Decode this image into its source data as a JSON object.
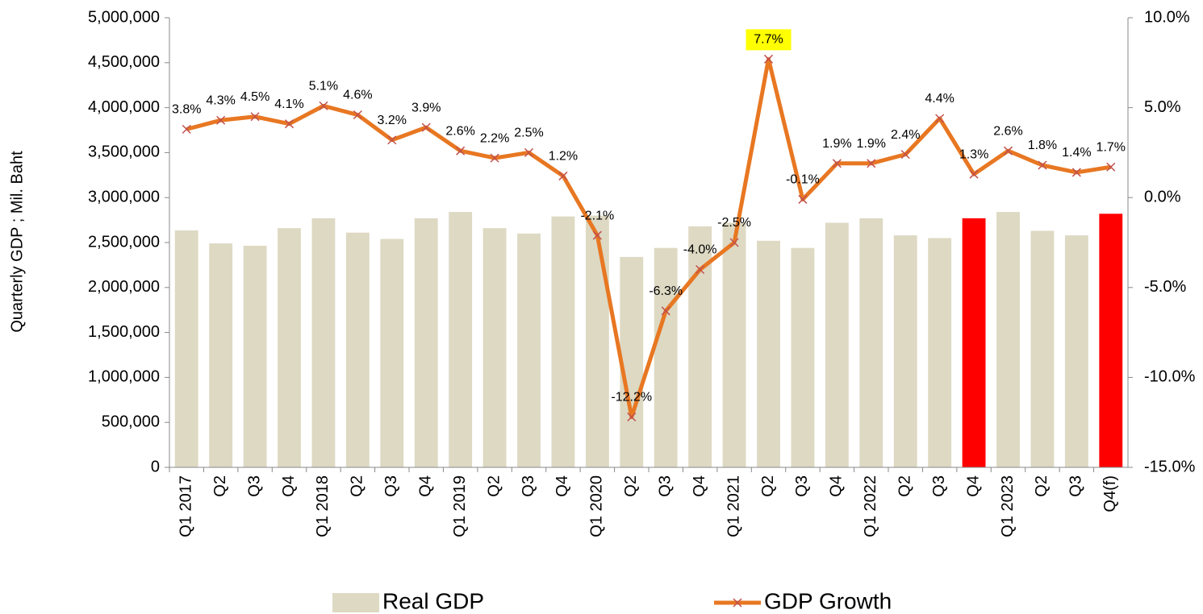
{
  "chart_data": {
    "type": "bar_line",
    "y_label": "Quarterly GDP ; Mil. Baht",
    "categories": [
      "Q1 2017",
      "Q2",
      "Q3",
      "Q4",
      "Q1 2018",
      "Q2",
      "Q3",
      "Q4",
      "Q1 2019",
      "Q2",
      "Q3",
      "Q4",
      "Q1 2020",
      "Q2",
      "Q3",
      "Q4",
      "Q1 2021",
      "Q2",
      "Q3",
      "Q4",
      "Q1 2022",
      "Q2",
      "Q3",
      "Q4",
      "Q1 2023",
      "Q2",
      "Q3",
      "Q4(f)"
    ],
    "series": [
      {
        "name": "Real GDP",
        "type": "bar",
        "color": "#ddd9c3",
        "point_colors": [
          "#ddd9c3",
          "#ddd9c3",
          "#ddd9c3",
          "#ddd9c3",
          "#ddd9c3",
          "#ddd9c3",
          "#ddd9c3",
          "#ddd9c3",
          "#ddd9c3",
          "#ddd9c3",
          "#ddd9c3",
          "#ddd9c3",
          "#ddd9c3",
          "#ddd9c3",
          "#ddd9c3",
          "#ddd9c3",
          "#ddd9c3",
          "#ddd9c3",
          "#ddd9c3",
          "#ddd9c3",
          "#ddd9c3",
          "#ddd9c3",
          "#ddd9c3",
          "#ff0000",
          "#ddd9c3",
          "#ddd9c3",
          "#ddd9c3",
          "#ff0000"
        ],
        "values": [
          2635000,
          2490000,
          2464000,
          2660000,
          2770000,
          2610000,
          2540000,
          2770000,
          2840000,
          2660000,
          2600000,
          2790000,
          2800000,
          2340000,
          2440000,
          2680000,
          2720000,
          2520000,
          2440000,
          2720000,
          2770000,
          2580000,
          2550000,
          2770000,
          2840000,
          2630000,
          2580000,
          2820000
        ]
      },
      {
        "name": "GDP Growth",
        "type": "line",
        "axis": "y2",
        "color": "#e87722",
        "marker_color": "#c0504d",
        "values": [
          3.8,
          4.3,
          4.5,
          4.1,
          5.1,
          4.6,
          3.2,
          3.9,
          2.6,
          2.2,
          2.5,
          1.2,
          -2.1,
          -12.2,
          -6.3,
          -4.0,
          -2.5,
          7.7,
          -0.1,
          1.9,
          1.9,
          2.4,
          4.4,
          1.3,
          2.6,
          1.8,
          1.4,
          1.7
        ],
        "value_labels": [
          "3.8%",
          "4.3%",
          "4.5%",
          "4.1%",
          "5.1%",
          "4.6%",
          "3.2%",
          "3.9%",
          "2.6%",
          "2.2%",
          "2.5%",
          "1.2%",
          "-2.1%",
          "-12.2%",
          "-6.3%",
          "-4.0%",
          "-2.5%",
          "7.7%",
          "-0.1%",
          "1.9%",
          "1.9%",
          "2.4%",
          "4.4%",
          "1.3%",
          "2.6%",
          "1.8%",
          "1.4%",
          "1.7%"
        ],
        "highlight": {
          "index": 17,
          "color": "#ffff00"
        }
      }
    ],
    "ylim": [
      0,
      5000000
    ],
    "yticks": [
      0,
      {
        "value": 500000,
        "label": "500,000"
      },
      {
        "value": 1000000,
        "label": "1,000,000"
      },
      {
        "value": 1500000,
        "label": "1,500,000"
      },
      {
        "value": 2000000,
        "label": "2,000,000"
      },
      {
        "value": 2500000,
        "label": "2,500,000"
      },
      {
        "value": 3000000,
        "label": "3,000,000"
      },
      {
        "value": 3500000,
        "label": "3,500,000"
      },
      {
        "value": 4000000,
        "label": "4,000,000"
      },
      {
        "value": 4500000,
        "label": "4,500,000"
      },
      {
        "value": 5000000,
        "label": "5,000,000"
      }
    ],
    "y2lim": [
      -15,
      10
    ],
    "y2ticks": [
      {
        "value": -15,
        "label": "-15.0%"
      },
      {
        "value": -10,
        "label": "-10.0%"
      },
      {
        "value": -5,
        "label": "-5.0%"
      },
      {
        "value": 0,
        "label": "0.0%"
      },
      {
        "value": 5,
        "label": "5.0%"
      },
      {
        "value": 10,
        "label": "10.0%"
      }
    ],
    "legend": "bottom"
  }
}
